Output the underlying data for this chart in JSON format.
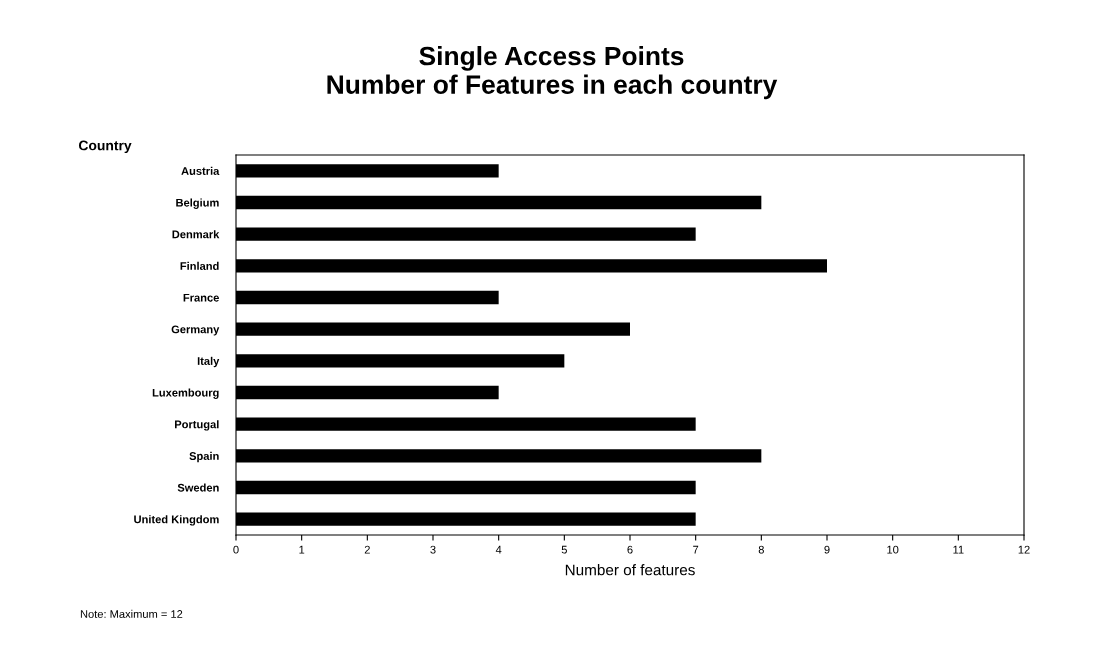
{
  "chart_data": {
    "type": "bar",
    "orientation": "horizontal",
    "title": "Single Access Points\nNumber of Features in each country",
    "categories": [
      "Austria",
      "Belgium",
      "Denmark",
      "Finland",
      "France",
      "Germany",
      "Italy",
      "Luxembourg",
      "Portugal",
      "Spain",
      "Sweden",
      "United Kingdom"
    ],
    "values": [
      4,
      8,
      7,
      9,
      4,
      6,
      5,
      4,
      7,
      8,
      7,
      7
    ],
    "color": "#000000",
    "xlabel": "Number of features",
    "ylabel": "Country",
    "xlim": [
      0,
      12
    ],
    "xticks": [
      0,
      1,
      2,
      3,
      4,
      5,
      6,
      7,
      8,
      9,
      10,
      11,
      12
    ],
    "grid": false,
    "legend": false,
    "annotations": [
      "Note: Maximum = 12"
    ]
  }
}
